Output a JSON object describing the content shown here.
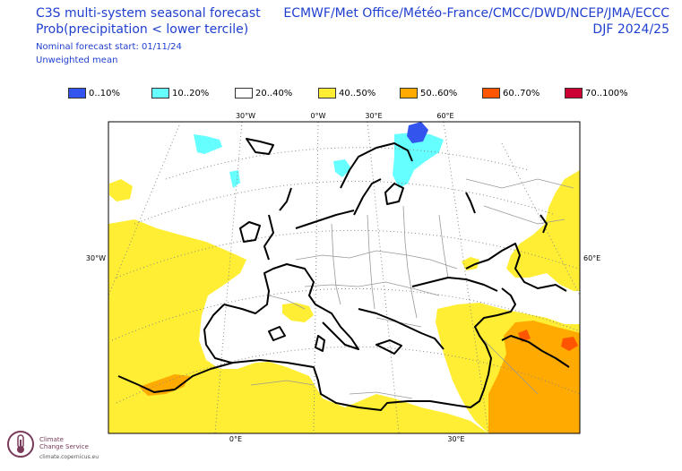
{
  "header": {
    "title": "C3S multi-system seasonal forecast",
    "variable": "Prob(precipitation < lower tercile)",
    "start": "Nominal forecast start: 01/11/24",
    "weighting": "Unweighted mean",
    "centres": "ECMWF/Met Office/Météo-France/CMCC/DWD/NCEP/JMA/ECCC",
    "season": "DJF 2024/25"
  },
  "legend": [
    {
      "label": "0..10%",
      "color": "#3355ee"
    },
    {
      "label": "10..20%",
      "color": "#66ffff"
    },
    {
      "label": "20..40%",
      "color": "#ffffff"
    },
    {
      "label": "40..50%",
      "color": "#ffee33"
    },
    {
      "label": "50..60%",
      "color": "#ffaa00"
    },
    {
      "label": "60..70%",
      "color": "#ff5500"
    },
    {
      "label": "70..100%",
      "color": "#cc0033"
    }
  ],
  "map": {
    "lon_labels_top": [
      "30°W",
      "0°W",
      "30°E",
      "60°E"
    ],
    "lon_labels_bottom": [
      "0°E",
      "30°E"
    ],
    "lat_label_left": "30°W",
    "lat_label_right": "60°E"
  },
  "logo": {
    "name_line1": "Climate",
    "name_line2": "Change Service",
    "url": "climate.copernicus.eu",
    "icon": "copernicus-thermometer-icon"
  }
}
